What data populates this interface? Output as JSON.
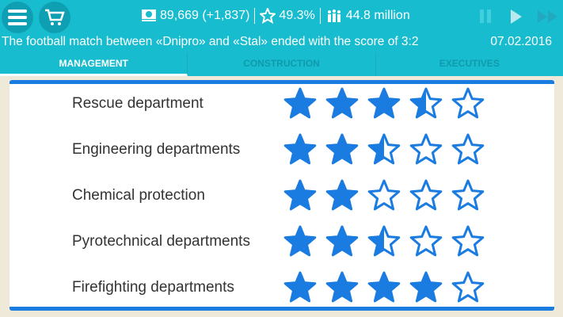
{
  "header": {
    "money": "89,669 (+1,837)",
    "rating": "49.3%",
    "population": "44.8 million",
    "news": "The football match between «Dnipro» and «Stal» ended with the score of 3:2",
    "date": "07.02.2016"
  },
  "tabs": [
    {
      "label": "MANAGEMENT",
      "active": true
    },
    {
      "label": "CONSTRUCTION"
    },
    {
      "label": "EXECUTIVES"
    }
  ],
  "departments": [
    {
      "name": "Rescue department",
      "rating": 3.5
    },
    {
      "name": "Engineering departments",
      "rating": 2.5
    },
    {
      "name": "Chemical protection",
      "rating": 2
    },
    {
      "name": "Pyrotechnical departments",
      "rating": 2.5
    },
    {
      "name": "Firefighting departments",
      "rating": 4
    }
  ],
  "colors": {
    "header": "#17bccf",
    "star": "#1a7ce0",
    "background": "#efe9da"
  }
}
